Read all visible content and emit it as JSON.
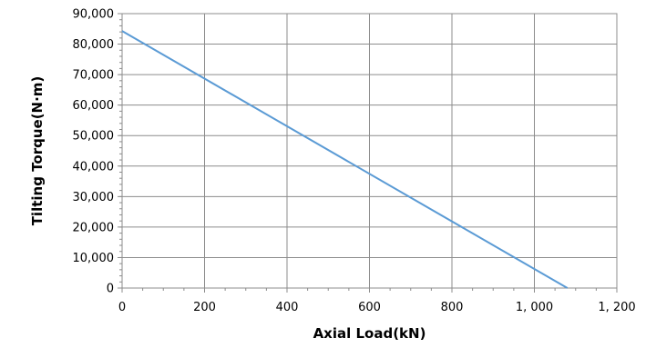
{
  "chart_data": {
    "type": "line",
    "title": "",
    "xlabel": "Axial Load(kN)",
    "ylabel": "Tilting Torque(N·m)",
    "xlim": [
      0,
      1200
    ],
    "ylim": [
      0,
      90000
    ],
    "x_ticks": [
      0,
      200,
      400,
      600,
      800,
      1000,
      1200
    ],
    "x_tick_labels": [
      "0",
      "200",
      "400",
      "600",
      "800",
      "1, 000",
      "1, 200"
    ],
    "y_ticks": [
      0,
      10000,
      20000,
      30000,
      40000,
      50000,
      60000,
      70000,
      80000,
      90000
    ],
    "y_tick_labels": [
      "0",
      "10,000",
      "20,000",
      "30,000",
      "40,000",
      "50,000",
      "60,000",
      "70,000",
      "80,000",
      "90,000"
    ],
    "grid": true,
    "legend": "none",
    "series": [
      {
        "color": "#5b9bd5",
        "x": [
          0,
          1080
        ],
        "y": [
          84300,
          0
        ]
      }
    ]
  }
}
